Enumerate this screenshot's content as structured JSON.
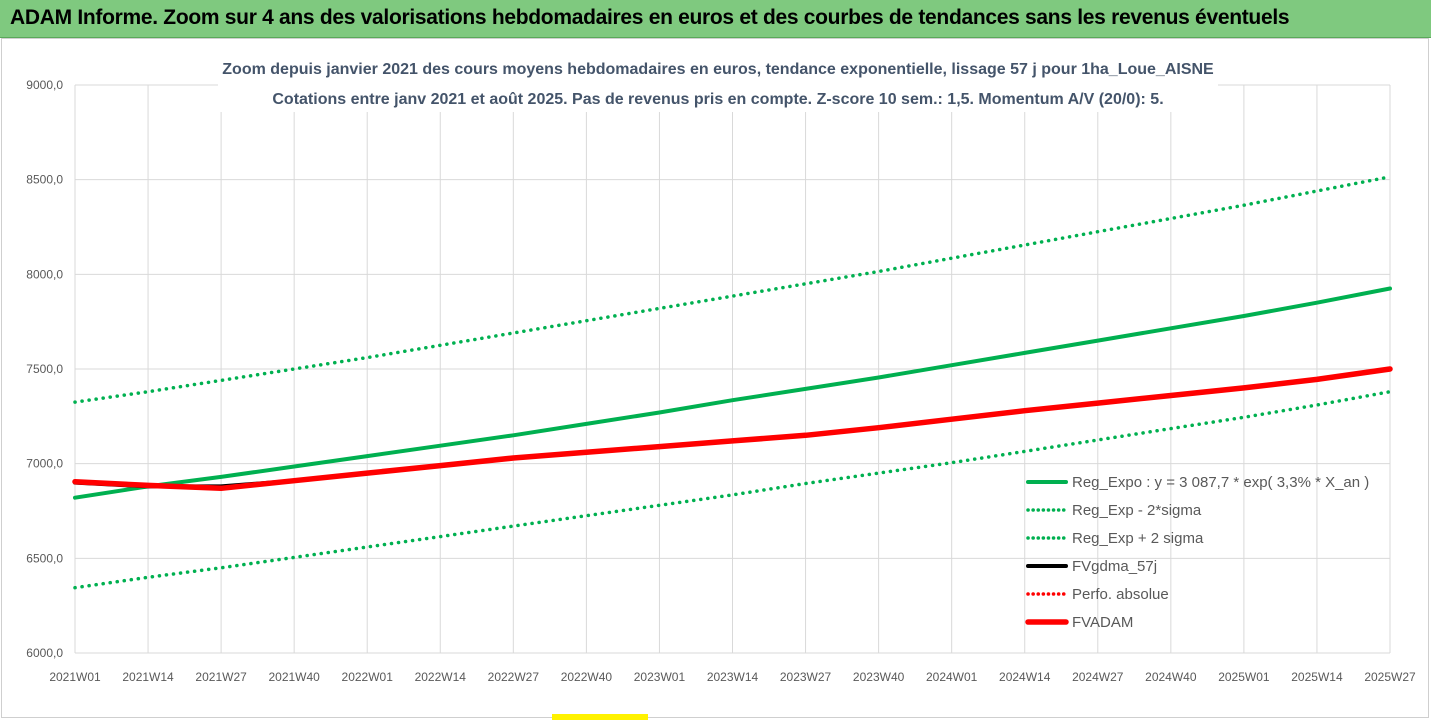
{
  "banner_title": "ADAM Informe. Zoom sur 4 ans des valorisations hebdomadaires en euros et des courbes de tendances sans les revenus éventuels",
  "colors": {
    "banner_bg": "#7fc97f",
    "green": "#00b050",
    "red": "#ff0000",
    "black": "#000000",
    "grid": "#d9d9d9",
    "title_text": "#44546a"
  },
  "chart_data": {
    "type": "line",
    "title_line1": "Zoom depuis janvier 2021 des cours moyens hebdomadaires en euros, tendance exponentielle, lissage 57 j pour 1ha_Loue_AISNE",
    "title_line2": "Cotations entre janv 2021 et août 2025.  Pas de revenus pris en compte. Z-score 10 sem.: 1,5. Momentum A/V (20/0): 5.",
    "ylim": [
      6000,
      9000
    ],
    "ytick_values": [
      6000,
      6500,
      7000,
      7500,
      8000,
      8500,
      9000
    ],
    "ytick_labels": [
      "6000,0",
      "6500,0",
      "7000,0",
      "7500,0",
      "8000,0",
      "8500,0",
      "9000,0"
    ],
    "x_categories": [
      "2021W01",
      "2021W14",
      "2021W27",
      "2021W40",
      "2022W01",
      "2022W14",
      "2022W27",
      "2022W40",
      "2023W01",
      "2023W14",
      "2023W27",
      "2023W40",
      "2024W01",
      "2024W14",
      "2024W27",
      "2024W40",
      "2025W01",
      "2025W14",
      "2025W27"
    ],
    "grid": true,
    "legend_position": "bottom-right",
    "series": [
      {
        "name": "Reg_Expo : y = 3 087,7 * exp( 3,3% *  X_an )",
        "style": "solid",
        "color": "#00b050",
        "values": [
          6820,
          6880,
          6930,
          6985,
          7040,
          7095,
          7150,
          7210,
          7270,
          7335,
          7395,
          7455,
          7520,
          7585,
          7650,
          7715,
          7780,
          7850,
          7925
        ]
      },
      {
        "name": "Reg_Exp - 2*sigma",
        "style": "dotted",
        "color": "#00b050",
        "values": [
          6345,
          6400,
          6450,
          6505,
          6560,
          6615,
          6670,
          6725,
          6780,
          6835,
          6895,
          6950,
          7005,
          7065,
          7125,
          7185,
          7245,
          7310,
          7380
        ]
      },
      {
        "name": "Reg_Exp + 2 sigma",
        "style": "dotted",
        "color": "#00b050",
        "values": [
          7325,
          7380,
          7440,
          7500,
          7560,
          7625,
          7690,
          7755,
          7820,
          7885,
          7950,
          8015,
          8085,
          8155,
          8225,
          8295,
          8365,
          8440,
          8515
        ]
      },
      {
        "name": "FVgdma_57j",
        "style": "solid",
        "color": "#000000",
        "values": [
          6900,
          6880,
          6880,
          6910,
          6950,
          6990,
          7030,
          7060,
          7090,
          7120,
          7150,
          7190,
          7235,
          7280,
          7320,
          7360,
          7400,
          7445,
          7500
        ]
      },
      {
        "name": "Perfo. absolue",
        "style": "dotted",
        "color": "#ff0000",
        "values": []
      },
      {
        "name": "FVADAM",
        "style": "thick",
        "color": "#ff0000",
        "values": [
          6905,
          6885,
          6870,
          6910,
          6950,
          6990,
          7030,
          7060,
          7090,
          7120,
          7150,
          7190,
          7235,
          7280,
          7320,
          7360,
          7400,
          7445,
          7500
        ]
      }
    ]
  }
}
